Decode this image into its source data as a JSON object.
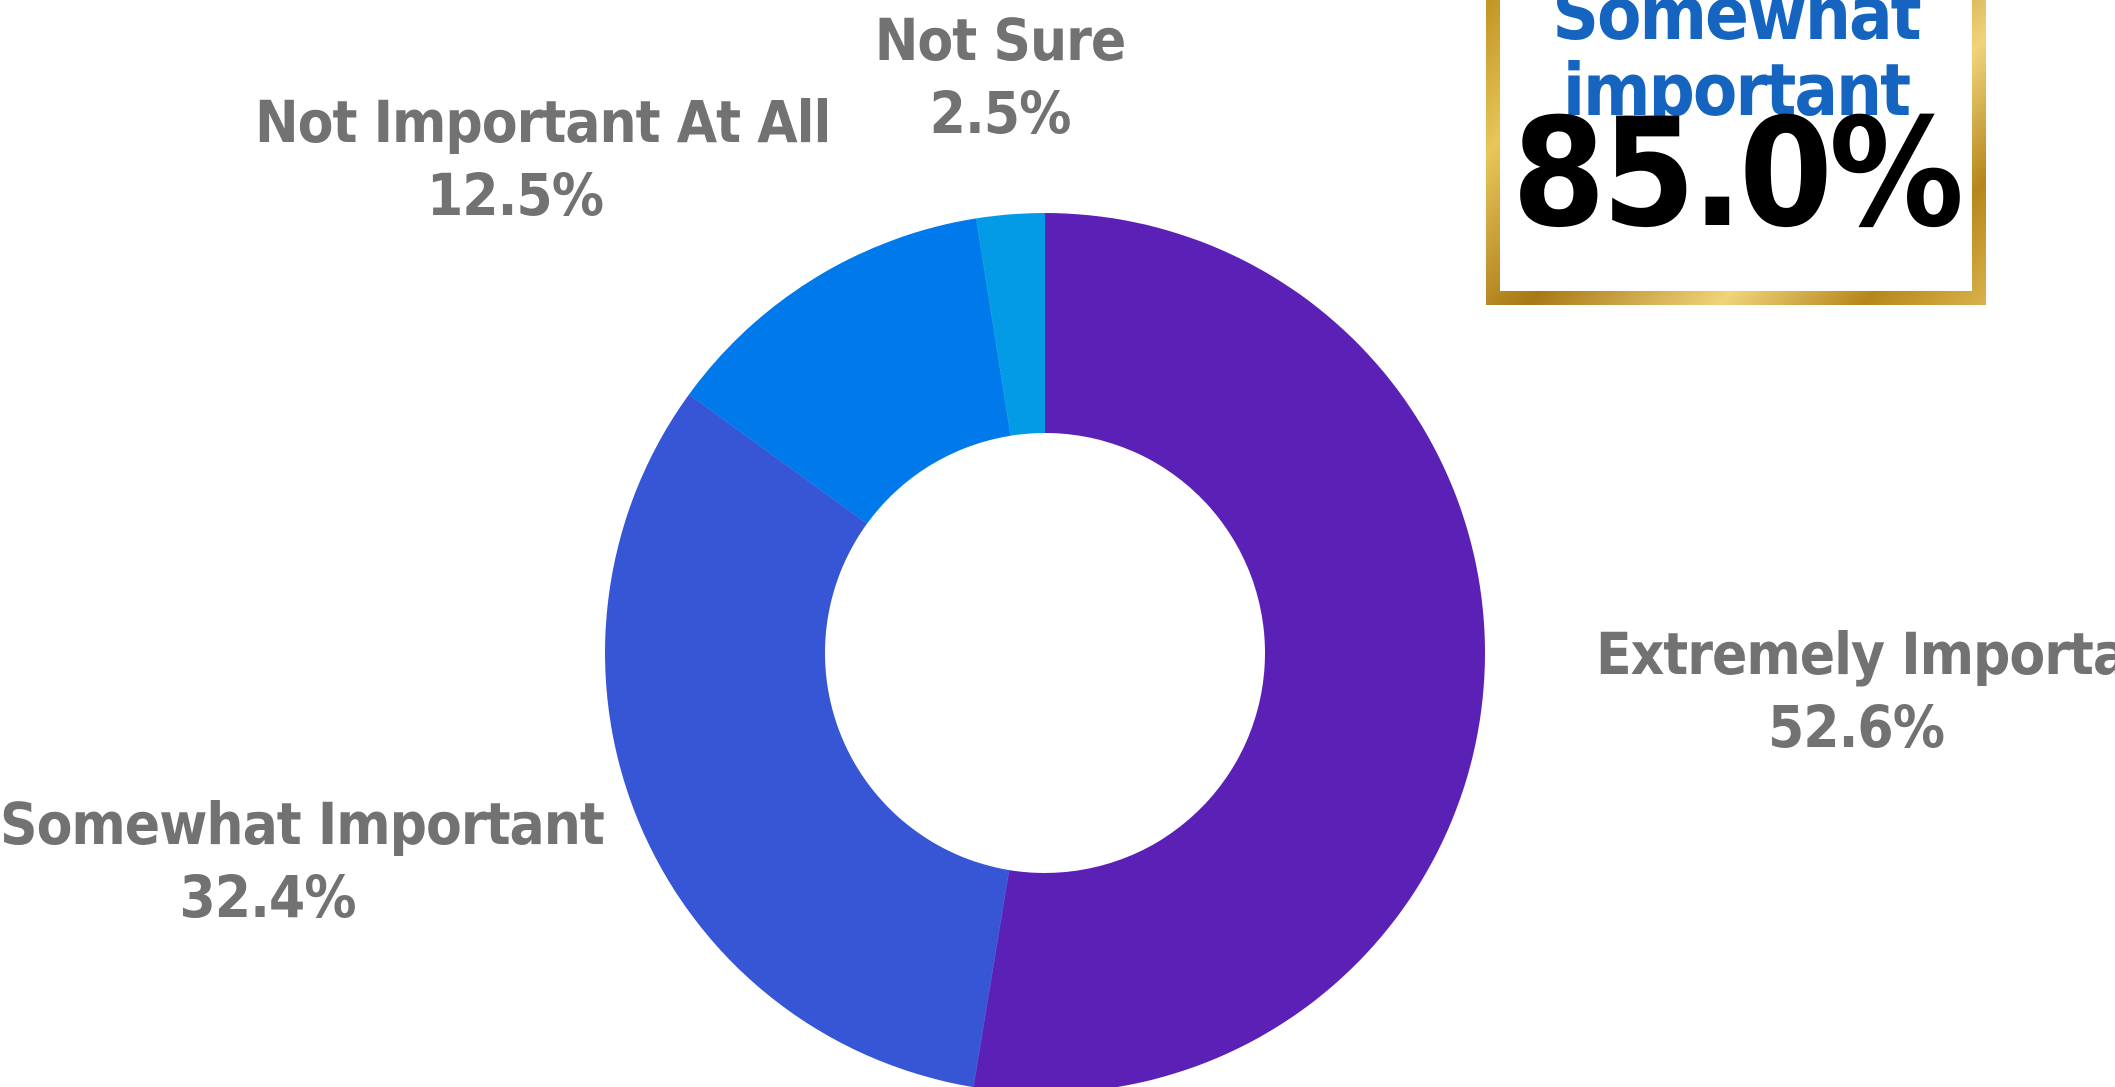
{
  "chart_data": {
    "type": "pie",
    "variant": "donut",
    "slices": [
      {
        "label": "Extremely Important",
        "value": 52.6,
        "display": "52.6%",
        "color": "#5b21b6"
      },
      {
        "label": "Somewhat Important",
        "value": 32.4,
        "display": "32.4%",
        "color": "#3656d6"
      },
      {
        "label": "Not Important At All",
        "value": 12.5,
        "display": "12.5%",
        "color": "#0079ea"
      },
      {
        "label": "Not Sure",
        "value": 2.5,
        "display": "2.5%",
        "color": "#039be5"
      }
    ],
    "start": "top",
    "direction": "clockwise",
    "legend": "labels beside slices"
  },
  "highlight": {
    "text": "Somewhat\nimportant",
    "value": "85.0%",
    "text_color": "#1565c0",
    "value_color": "#000000",
    "border": "gold"
  },
  "colors": {
    "label_text": "#727272",
    "background": "#ffffff"
  }
}
